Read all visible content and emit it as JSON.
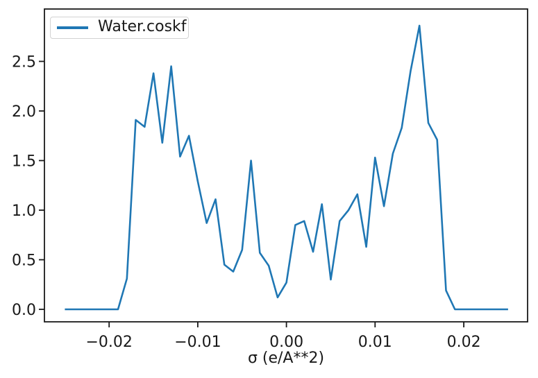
{
  "colors": {
    "line": "#1f77b4",
    "axis": "#191919",
    "background": "#ffffff",
    "legend_border": "#d2d2d2"
  },
  "legend": {
    "entries": [
      {
        "label": "Water.coskf",
        "color": "#1f77b4"
      }
    ]
  },
  "chart_data": {
    "type": "line",
    "title": "",
    "xlabel": "σ (e/A**2)",
    "ylabel": "",
    "grid": false,
    "legend_position": "upper left",
    "xlim": [
      -0.0273,
      0.0272
    ],
    "ylim": [
      -0.126,
      3.028
    ],
    "xticks": {
      "values": [
        -0.02,
        -0.01,
        0.0,
        0.01,
        0.02
      ],
      "labels": [
        "−0.02",
        "−0.01",
        "0.00",
        "0.01",
        "0.02"
      ]
    },
    "yticks": {
      "values": [
        0.0,
        0.5,
        1.0,
        1.5,
        2.0,
        2.5
      ],
      "labels": [
        "0.0",
        "0.5",
        "1.0",
        "1.5",
        "2.0",
        "2.5"
      ]
    },
    "series": [
      {
        "name": "Water.coskf",
        "color": "#1f77b4",
        "x": [
          -0.025,
          -0.024,
          -0.023,
          -0.022,
          -0.021,
          -0.02,
          -0.019,
          -0.018,
          -0.017,
          -0.016,
          -0.015,
          -0.014,
          -0.013,
          -0.012,
          -0.011,
          -0.01,
          -0.009,
          -0.008,
          -0.007,
          -0.006,
          -0.005,
          -0.004,
          -0.003,
          -0.002,
          -0.001,
          0.0,
          0.001,
          0.002,
          0.003,
          0.004,
          0.005,
          0.006,
          0.007,
          0.008,
          0.009,
          0.01,
          0.011,
          0.012,
          0.013,
          0.014,
          0.015,
          0.016,
          0.017,
          0.018,
          0.019,
          0.02,
          0.021,
          0.022,
          0.023,
          0.024,
          0.025
        ],
        "y": [
          0.0,
          0.0,
          0.0,
          0.0,
          0.0,
          0.0,
          0.0,
          0.31,
          1.91,
          1.84,
          2.38,
          1.68,
          2.45,
          1.54,
          1.75,
          1.29,
          0.87,
          1.11,
          0.45,
          0.38,
          0.6,
          1.5,
          0.57,
          0.44,
          0.12,
          0.27,
          0.85,
          0.89,
          0.58,
          1.06,
          0.3,
          0.89,
          1.0,
          1.16,
          0.63,
          1.53,
          1.04,
          1.57,
          1.83,
          2.4,
          2.86,
          1.88,
          1.71,
          0.19,
          0.0,
          0.0,
          0.0,
          0.0,
          0.0,
          0.0,
          0.0
        ]
      }
    ]
  }
}
